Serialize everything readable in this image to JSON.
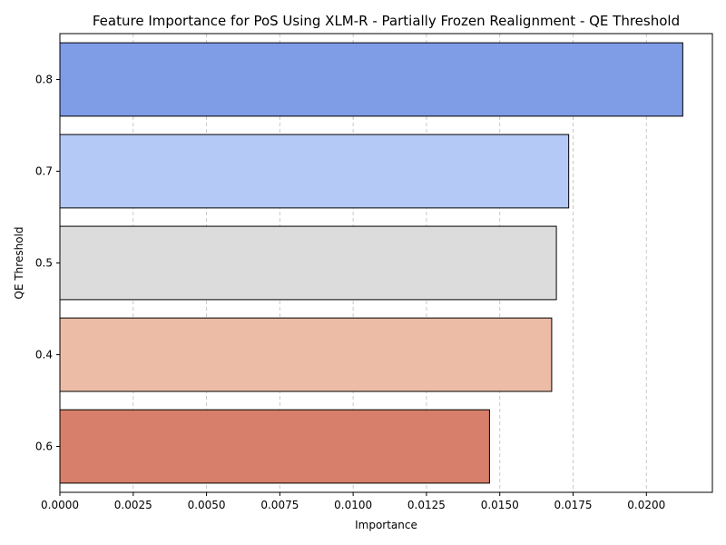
{
  "chart_data": {
    "type": "bar",
    "orientation": "horizontal",
    "title": "Feature Importance for PoS Using XLM-R - Partially Frozen Realignment - QE Threshold",
    "xlabel": "Importance",
    "ylabel": "QE Threshold",
    "categories": [
      "0.8",
      "0.7",
      "0.5",
      "0.4",
      "0.6"
    ],
    "values": [
      0.02124,
      0.01735,
      0.01693,
      0.01677,
      0.01465
    ],
    "colors": [
      "#7f9ce6",
      "#b4c9f5",
      "#dcdcdc",
      "#ecbca6",
      "#d77f6b"
    ],
    "xlim": [
      0,
      0.02225
    ],
    "xticks": [
      0.0,
      0.0025,
      0.005,
      0.0075,
      0.01,
      0.0125,
      0.015,
      0.0175,
      0.02
    ],
    "xtick_labels": [
      "0.0000",
      "0.0025",
      "0.0050",
      "0.0075",
      "0.0100",
      "0.0125",
      "0.0150",
      "0.0175",
      "0.0200"
    ],
    "grid": "x-dashed"
  }
}
